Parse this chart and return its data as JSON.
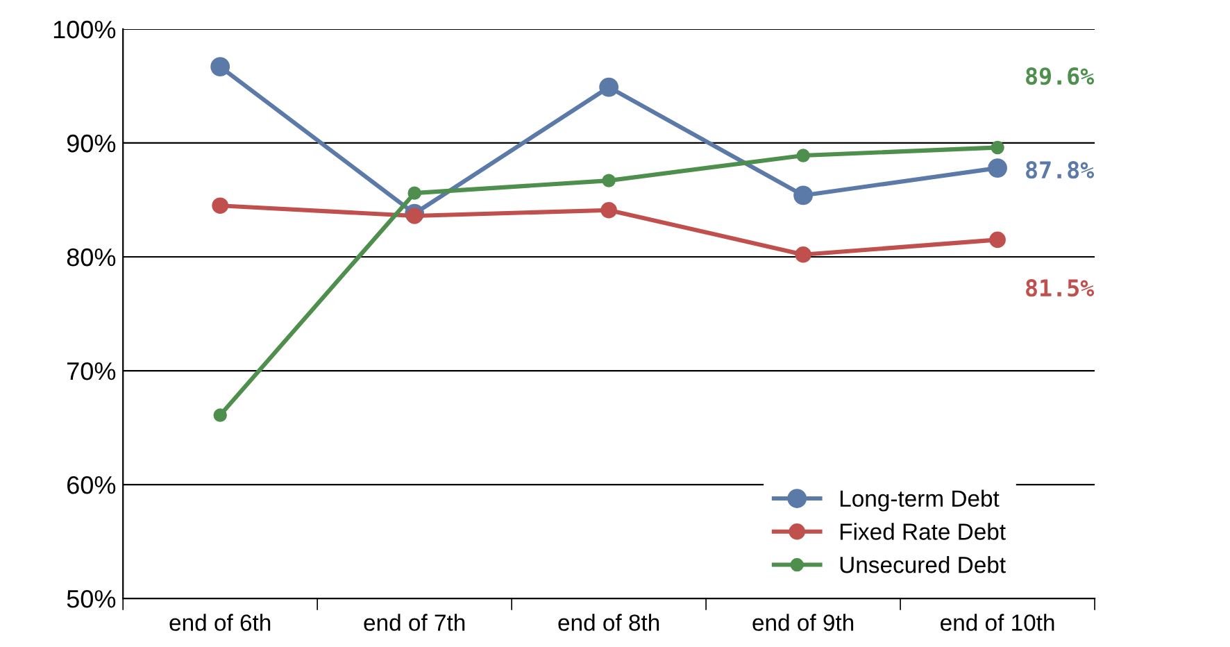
{
  "chart_data": {
    "type": "line",
    "categories": [
      "end of 6th",
      "end of 7th",
      "end of 8th",
      "end of 9th",
      "end of 10th"
    ],
    "series": [
      {
        "name": "Long-term Debt",
        "color": "#5b7aa8",
        "values": [
          96.7,
          83.8,
          94.9,
          85.4,
          87.8
        ],
        "value_labels": [
          null,
          null,
          null,
          null,
          "87.8%"
        ]
      },
      {
        "name": "Fixed Rate Debt",
        "color": "#c0504d",
        "values": [
          84.5,
          83.6,
          84.1,
          80.2,
          81.5
        ],
        "value_labels": [
          null,
          null,
          null,
          null,
          "81.5%"
        ]
      },
      {
        "name": "Unsecured Debt",
        "color": "#4e8f4e",
        "values": [
          66.1,
          85.6,
          86.7,
          88.9,
          89.6
        ],
        "value_labels": [
          null,
          null,
          null,
          null,
          "89.6%"
        ]
      }
    ],
    "ylim": [
      50,
      100
    ],
    "yticks": [
      {
        "value": 50,
        "label": "50%"
      },
      {
        "value": 60,
        "label": "60%"
      },
      {
        "value": 70,
        "label": "70%"
      },
      {
        "value": 80,
        "label": "80%"
      },
      {
        "value": 90,
        "label": "90%"
      },
      {
        "value": 100,
        "label": "100%"
      }
    ],
    "grid": "y",
    "legend": "bottom right",
    "marker": "circle",
    "line_style": "solid"
  }
}
